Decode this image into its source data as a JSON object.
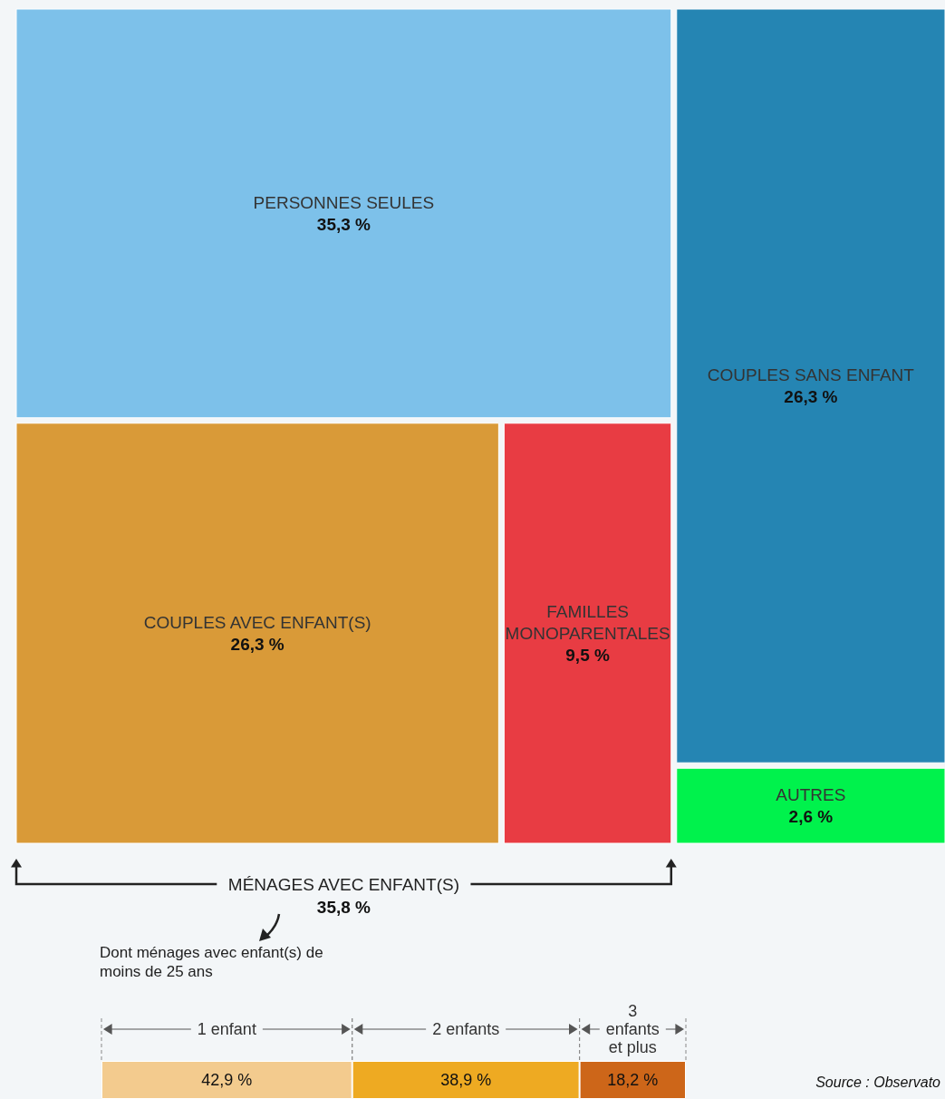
{
  "chart_data": [
    {
      "type": "other",
      "categories": [
        "PERSONNES SEULES",
        "COUPLES SANS ENFANT",
        "COUPLES AVEC ENFANT(S)",
        "FAMILLES MONOPARENTALES",
        "AUTRES"
      ],
      "values": [
        35.3,
        26.3,
        26.3,
        9.5,
        2.6
      ],
      "value_labels": [
        "35,3 %",
        "26,3 %",
        "26,3 %",
        "9,5 %",
        "2,6 %"
      ],
      "colors": [
        "#7dc1ea",
        "#2585b3",
        "#d99a38",
        "#e83c43",
        "#00f24c"
      ],
      "annotations": [
        "MÉNAGES AVEC ENFANT(S)",
        "35,8 %",
        "Dont ménages avec enfant(s) de moins de 25 ans"
      ]
    },
    {
      "type": "bar",
      "orientation": "horizontal",
      "stacked": true,
      "categories": [
        null
      ],
      "series": [
        {
          "name": "1 enfant",
          "color": "#f3cb8e",
          "values": [
            42.9
          ],
          "value_labels": [
            "42,9 %"
          ]
        },
        {
          "name": "2 enfants",
          "color": "#eeaa22",
          "values": [
            38.9
          ],
          "value_labels": [
            "38,9 %"
          ]
        },
        {
          "name": "3 enfants et plus",
          "color": "#cd6619",
          "values": [
            18.2
          ],
          "value_labels": [
            "18,2 %"
          ]
        }
      ],
      "annotations": [
        "Source : Observato"
      ]
    }
  ]
}
